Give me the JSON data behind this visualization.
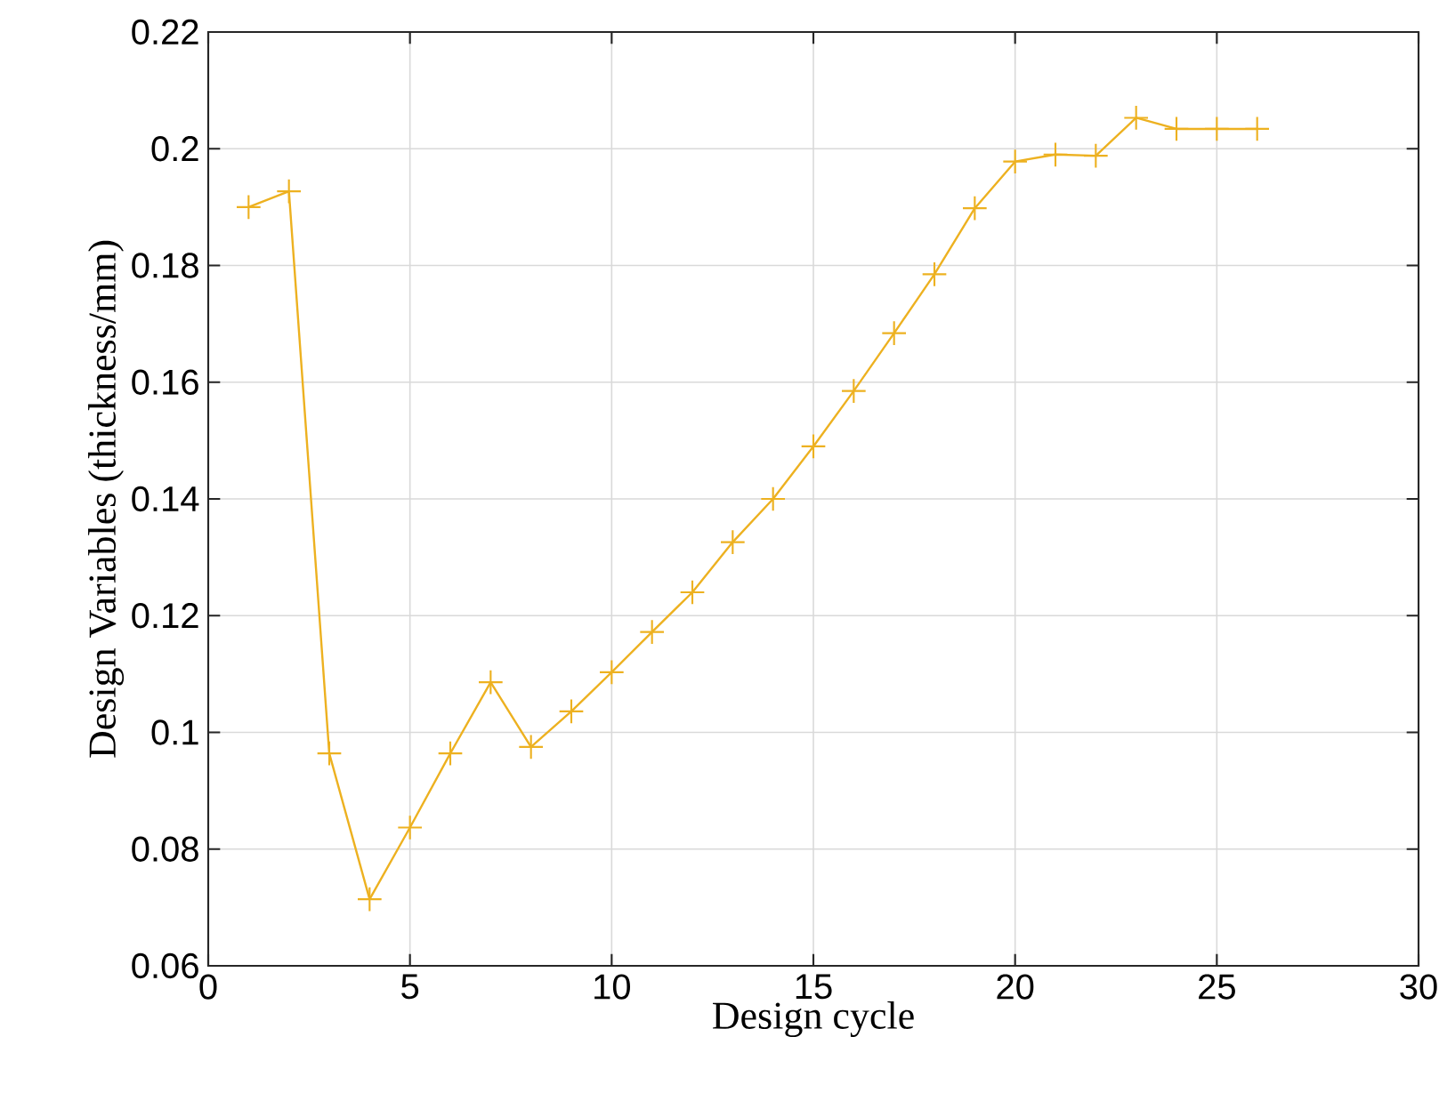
{
  "chart_data": {
    "type": "line",
    "xlabel": "Design cycle",
    "ylabel": "Design Variables (thickness/mm)",
    "x": [
      1,
      2,
      3,
      4,
      5,
      6,
      7,
      8,
      9,
      10,
      11,
      12,
      13,
      14,
      15,
      16,
      17,
      18,
      19,
      20,
      21,
      22,
      23,
      24,
      25,
      26
    ],
    "series": [
      {
        "color": "#edb120",
        "values": [
          0.19,
          0.1927,
          0.0964,
          0.0714,
          0.0837,
          0.0964,
          0.1086,
          0.0975,
          0.1036,
          0.1103,
          0.1172,
          0.124,
          0.1326,
          0.14,
          0.149,
          0.1585,
          0.1684,
          0.1785,
          0.1898,
          0.1978,
          0.199,
          0.1988,
          0.2053,
          0.2034,
          0.2034,
          0.2034
        ]
      }
    ],
    "xlim": [
      0,
      30
    ],
    "ylim": [
      0.06,
      0.22
    ],
    "xticks": [
      0,
      5,
      10,
      15,
      20,
      25,
      30
    ],
    "yticks": [
      0.06,
      0.08,
      0.1,
      0.12,
      0.14,
      0.16,
      0.18,
      0.2,
      0.22
    ],
    "grid": true,
    "marker": "cross",
    "line_style": "solid"
  }
}
